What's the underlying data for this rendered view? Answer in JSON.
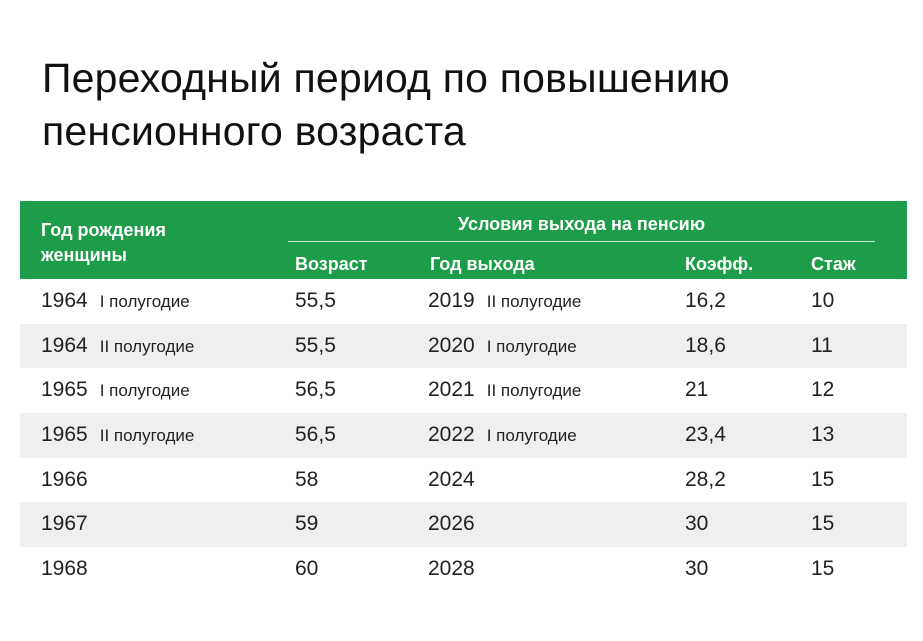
{
  "title": {
    "line1": "Переходный период по повышению",
    "line2": "пенсионного возраста"
  },
  "colors": {
    "header_bg": "#1e9d48",
    "header_text": "#ffffff",
    "row_alt": "#efefef"
  },
  "table": {
    "header": {
      "birth_line1": "Год рождения",
      "birth_line2": "женщины",
      "conditions": "Условия выхода на пенсию",
      "columns": [
        "Возраст",
        "Год выхода",
        "Коэфф.",
        "Стаж"
      ]
    },
    "rows": [
      {
        "birth_year": "1964",
        "birth_half": "I полугодие",
        "age": "55,5",
        "exit_year": "2019",
        "exit_half": "II полугодие",
        "coef": "16,2",
        "exp": "10"
      },
      {
        "birth_year": "1964",
        "birth_half": "II полугодие",
        "age": "55,5",
        "exit_year": "2020",
        "exit_half": "I полугодие",
        "coef": "18,6",
        "exp": "11"
      },
      {
        "birth_year": "1965",
        "birth_half": "I полугодие",
        "age": "56,5",
        "exit_year": "2021",
        "exit_half": "II полугодие",
        "coef": "21",
        "exp": "12"
      },
      {
        "birth_year": "1965",
        "birth_half": "II полугодие",
        "age": "56,5",
        "exit_year": "2022",
        "exit_half": "I полугодие",
        "coef": "23,4",
        "exp": "13"
      },
      {
        "birth_year": "1966",
        "birth_half": "",
        "age": "58",
        "exit_year": "2024",
        "exit_half": "",
        "coef": "28,2",
        "exp": "15"
      },
      {
        "birth_year": "1967",
        "birth_half": "",
        "age": "59",
        "exit_year": "2026",
        "exit_half": "",
        "coef": "30",
        "exp": "15"
      },
      {
        "birth_year": "1968",
        "birth_half": "",
        "age": "60",
        "exit_year": "2028",
        "exit_half": "",
        "coef": "30",
        "exp": "15"
      }
    ]
  }
}
